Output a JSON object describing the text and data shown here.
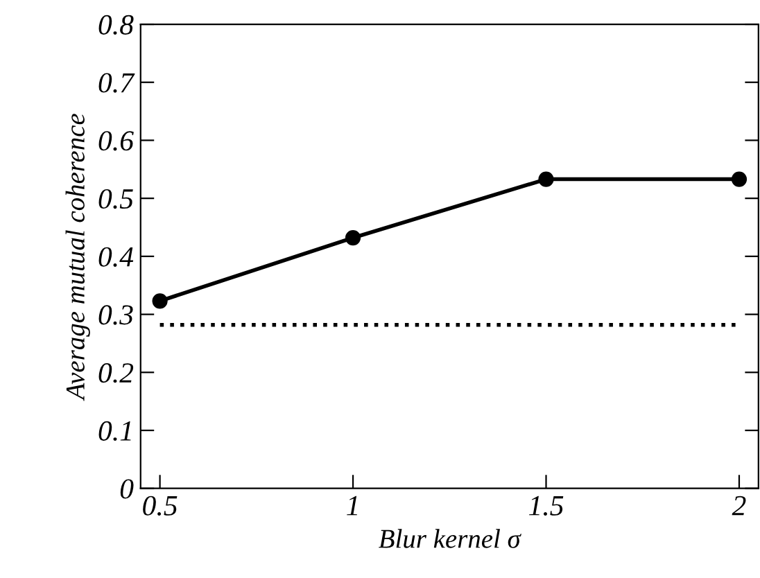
{
  "chart_data": {
    "type": "line",
    "xlabel": "Blur kernel σ",
    "ylabel": "Average mutual coherence",
    "x": [
      0.5,
      1,
      1.5,
      2
    ],
    "series": [
      {
        "color": "#000000",
        "values": [
          0.323,
          0.432,
          0.533,
          0.533
        ]
      }
    ],
    "marker": "circle",
    "line_style": "solid",
    "ref_lines": [
      {
        "axis": "y",
        "value": 0.282,
        "label": null,
        "color": "#000000",
        "line_style": "dotted"
      }
    ],
    "xlim": [
      0.45,
      2.05
    ],
    "xticks": [
      0.5,
      1,
      1.5,
      2
    ],
    "ylim": [
      0,
      0.8
    ],
    "yticks": [
      0,
      0.1,
      0.2,
      0.3,
      0.4,
      0.5,
      0.6,
      0.7,
      0.8
    ],
    "grid": false,
    "legend": false
  }
}
